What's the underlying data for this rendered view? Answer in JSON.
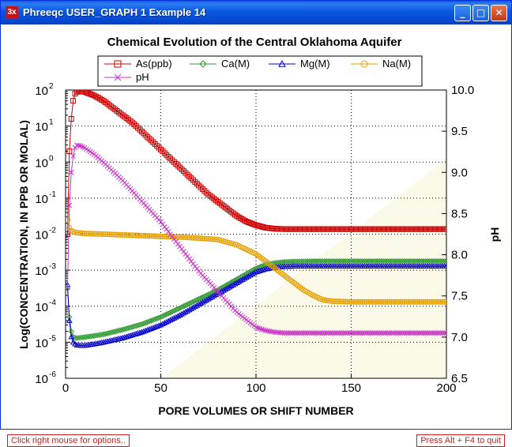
{
  "window": {
    "icon_label": "3x",
    "title": "Phreeqc USER_GRAPH 1 Example 14",
    "buttons": {
      "minimize": "_",
      "maximize": "□",
      "close": "✕"
    }
  },
  "status": {
    "left": "Click right mouse for options..",
    "right": "Press Alt + F4 to quit"
  },
  "chart_data": {
    "type": "line",
    "title": "Chemical Evolution of the Central Oklahoma Aquifer",
    "xlabel": "PORE VOLUMES OR SHIFT NUMBER",
    "ylabel": "Log(CONCENTRATION, IN PPB OR MOLAL)",
    "y2label": "pH",
    "xlim": [
      0,
      200
    ],
    "ylim": [
      -6,
      2
    ],
    "y2lim": [
      6.5,
      10.0
    ],
    "xticks": [
      "0",
      "50",
      "100",
      "150",
      "200"
    ],
    "yticks": [
      "10",
      "10",
      "10",
      "10",
      "10",
      "10",
      "10",
      "10",
      "10"
    ],
    "ytick_exponents": [
      "-6",
      "-5",
      "-4",
      "-3",
      "-2",
      "-1",
      "0",
      "1",
      "2"
    ],
    "y2ticks": [
      "6.5",
      "7.0",
      "7.5",
      "8.0",
      "8.5",
      "9.0",
      "9.5",
      "10.0"
    ],
    "grid": true,
    "legend_position": "top",
    "series": [
      {
        "name": "As(ppb)",
        "axis": "left",
        "color": "#cc0000",
        "marker": "square",
        "x": [
          1,
          2,
          3,
          4,
          5,
          6,
          8,
          10,
          15,
          20,
          25,
          30,
          35,
          40,
          45,
          50,
          55,
          60,
          65,
          70,
          75,
          80,
          85,
          90,
          95,
          100,
          105,
          110,
          115,
          120,
          130,
          140,
          150,
          160,
          170,
          180,
          190,
          200
        ],
        "y": [
          -2,
          0.3,
          1.2,
          1.7,
          1.9,
          1.95,
          1.96,
          1.95,
          1.85,
          1.7,
          1.5,
          1.3,
          1.1,
          0.85,
          0.6,
          0.35,
          0.1,
          -0.15,
          -0.4,
          -0.65,
          -0.9,
          -1.1,
          -1.3,
          -1.5,
          -1.65,
          -1.75,
          -1.82,
          -1.85,
          -1.86,
          -1.86,
          -1.86,
          -1.86,
          -1.86,
          -1.86,
          -1.86,
          -1.86,
          -1.86,
          -1.86
        ]
      },
      {
        "name": "Ca(M)",
        "axis": "left",
        "color": "#339933",
        "marker": "diamond",
        "x": [
          1,
          2,
          3,
          4,
          5,
          6,
          8,
          10,
          15,
          20,
          30,
          40,
          50,
          60,
          70,
          80,
          90,
          100,
          105,
          110,
          115,
          120,
          130,
          140,
          150,
          160,
          170,
          180,
          190,
          200
        ],
        "y": [
          -3.5,
          -4.3,
          -4.7,
          -4.85,
          -4.88,
          -4.88,
          -4.87,
          -4.86,
          -4.82,
          -4.78,
          -4.65,
          -4.5,
          -4.3,
          -4.05,
          -3.8,
          -3.55,
          -3.25,
          -2.95,
          -2.85,
          -2.8,
          -2.77,
          -2.76,
          -2.75,
          -2.75,
          -2.75,
          -2.75,
          -2.75,
          -2.75,
          -2.75,
          -2.75
        ]
      },
      {
        "name": "Mg(M)",
        "axis": "left",
        "color": "#0000cc",
        "marker": "triangle",
        "x": [
          1,
          2,
          3,
          4,
          5,
          6,
          8,
          10,
          15,
          20,
          30,
          40,
          50,
          60,
          70,
          80,
          90,
          100,
          105,
          110,
          115,
          120,
          130,
          140,
          150,
          160,
          170,
          180,
          190,
          200
        ],
        "y": [
          -3.4,
          -4.4,
          -4.85,
          -5.0,
          -5.05,
          -5.08,
          -5.09,
          -5.09,
          -5.05,
          -5.0,
          -4.88,
          -4.72,
          -4.52,
          -4.25,
          -3.95,
          -3.65,
          -3.35,
          -3.05,
          -2.97,
          -2.92,
          -2.9,
          -2.89,
          -2.89,
          -2.89,
          -2.89,
          -2.89,
          -2.89,
          -2.89,
          -2.89,
          -2.89
        ]
      },
      {
        "name": "Na(M)",
        "axis": "left",
        "color": "#e6a000",
        "marker": "circle",
        "x": [
          1,
          2,
          3,
          4,
          5,
          6,
          8,
          10,
          15,
          20,
          30,
          40,
          50,
          60,
          70,
          80,
          90,
          100,
          105,
          110,
          115,
          120,
          125,
          130,
          135,
          140,
          150,
          160,
          170,
          180,
          190,
          200
        ],
        "y": [
          -1.6,
          -1.82,
          -1.9,
          -1.93,
          -1.95,
          -1.96,
          -1.97,
          -1.98,
          -1.99,
          -2.0,
          -2.02,
          -2.04,
          -2.06,
          -2.08,
          -2.11,
          -2.15,
          -2.3,
          -2.55,
          -2.75,
          -2.95,
          -3.15,
          -3.35,
          -3.55,
          -3.7,
          -3.82,
          -3.86,
          -3.88,
          -3.88,
          -3.88,
          -3.88,
          -3.88,
          -3.88
        ]
      },
      {
        "name": "pH",
        "axis": "right",
        "color": "#cc33cc",
        "marker": "x",
        "x": [
          1,
          2,
          3,
          4,
          5,
          6,
          8,
          10,
          15,
          20,
          30,
          40,
          50,
          60,
          70,
          80,
          90,
          100,
          105,
          110,
          115,
          120,
          130,
          140,
          150,
          160,
          170,
          180,
          190,
          200
        ],
        "y": [
          7.6,
          8.6,
          9.0,
          9.2,
          9.3,
          9.33,
          9.32,
          9.3,
          9.22,
          9.12,
          8.9,
          8.65,
          8.4,
          8.1,
          7.8,
          7.55,
          7.3,
          7.12,
          7.08,
          7.06,
          7.05,
          7.05,
          7.05,
          7.05,
          7.05,
          7.05,
          7.05,
          7.05,
          7.05,
          7.05
        ]
      }
    ]
  }
}
